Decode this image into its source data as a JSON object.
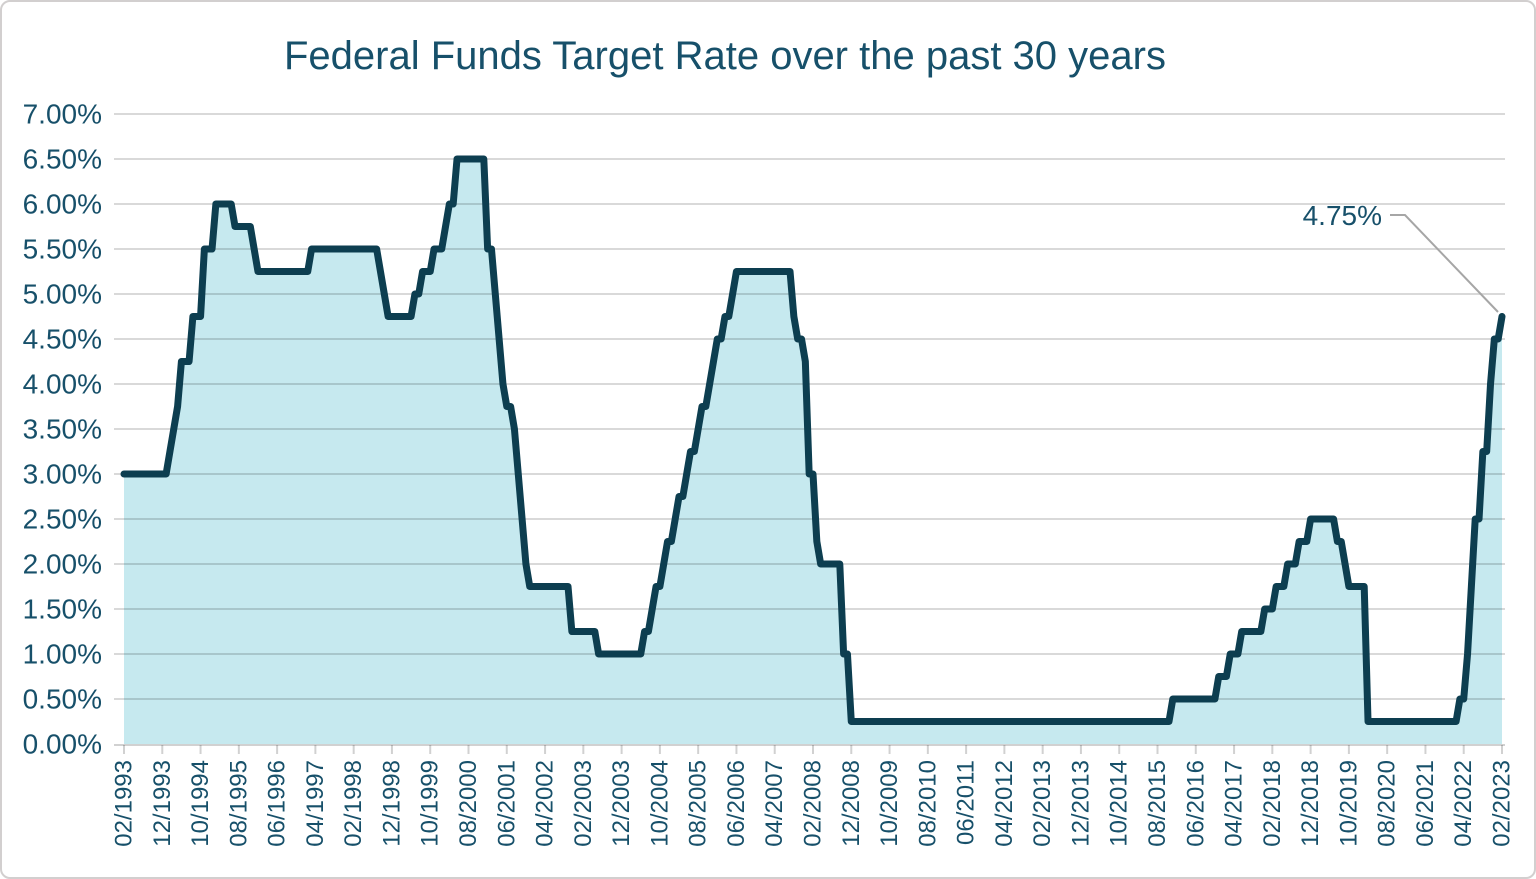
{
  "chart_data": {
    "type": "area",
    "title": "Federal Funds Target Rate over the past 30 years",
    "xlabel": "",
    "ylabel": "",
    "ylim": [
      0,
      7
    ],
    "grid": "horizontal",
    "legend": "none",
    "x_start": "02/1993",
    "x_end": "02/2023",
    "x_frequency": "monthly",
    "y_ticks": [
      "0.00%",
      "0.50%",
      "1.00%",
      "1.50%",
      "2.00%",
      "2.50%",
      "3.00%",
      "3.50%",
      "4.00%",
      "4.50%",
      "5.00%",
      "5.50%",
      "6.00%",
      "6.50%",
      "7.00%"
    ],
    "x_ticks": [
      "02/1993",
      "12/1993",
      "10/1994",
      "08/1995",
      "06/1996",
      "04/1997",
      "02/1998",
      "12/1998",
      "10/1999",
      "08/2000",
      "06/2001",
      "04/2002",
      "02/2003",
      "12/2003",
      "10/2004",
      "08/2005",
      "06/2006",
      "04/2007",
      "02/2008",
      "12/2008",
      "10/2009",
      "08/2010",
      "06/2011",
      "04/2012",
      "02/2013",
      "12/2013",
      "10/2014",
      "08/2015",
      "06/2016",
      "04/2017",
      "02/2018",
      "12/2018",
      "10/2019",
      "08/2020",
      "06/2021",
      "04/2022",
      "02/2023"
    ],
    "x_tick_step_months": 10,
    "series_name": "Federal Funds Target Rate (%)",
    "values_rle": [
      [
        3.0,
        12
      ],
      [
        3.25,
        1
      ],
      [
        3.5,
        1
      ],
      [
        3.75,
        1
      ],
      [
        4.25,
        3
      ],
      [
        4.75,
        3
      ],
      [
        5.5,
        3
      ],
      [
        6.0,
        5
      ],
      [
        5.75,
        5
      ],
      [
        5.5,
        1
      ],
      [
        5.25,
        14
      ],
      [
        5.5,
        18
      ],
      [
        5.25,
        1
      ],
      [
        5.0,
        1
      ],
      [
        4.75,
        7
      ],
      [
        5.0,
        2
      ],
      [
        5.25,
        3
      ],
      [
        5.5,
        3
      ],
      [
        5.75,
        1
      ],
      [
        6.0,
        2
      ],
      [
        6.5,
        8
      ],
      [
        5.5,
        2
      ],
      [
        5.0,
        1
      ],
      [
        4.5,
        1
      ],
      [
        4.0,
        1
      ],
      [
        3.75,
        2
      ],
      [
        3.5,
        1
      ],
      [
        3.0,
        1
      ],
      [
        2.5,
        1
      ],
      [
        2.0,
        1
      ],
      [
        1.75,
        11
      ],
      [
        1.25,
        7
      ],
      [
        1.0,
        12
      ],
      [
        1.25,
        2
      ],
      [
        1.5,
        1
      ],
      [
        1.75,
        2
      ],
      [
        2.0,
        1
      ],
      [
        2.25,
        2
      ],
      [
        2.5,
        1
      ],
      [
        2.75,
        2
      ],
      [
        3.0,
        1
      ],
      [
        3.25,
        2
      ],
      [
        3.5,
        1
      ],
      [
        3.75,
        2
      ],
      [
        4.0,
        1
      ],
      [
        4.25,
        1
      ],
      [
        4.5,
        2
      ],
      [
        4.75,
        2
      ],
      [
        5.0,
        1
      ],
      [
        5.25,
        15
      ],
      [
        4.75,
        1
      ],
      [
        4.5,
        2
      ],
      [
        4.25,
        1
      ],
      [
        3.0,
        2
      ],
      [
        2.25,
        1
      ],
      [
        2.0,
        6
      ],
      [
        1.0,
        2
      ],
      [
        0.25,
        84
      ],
      [
        0.5,
        12
      ],
      [
        0.75,
        3
      ],
      [
        1.0,
        3
      ],
      [
        1.25,
        6
      ],
      [
        1.5,
        3
      ],
      [
        1.75,
        3
      ],
      [
        2.0,
        3
      ],
      [
        2.25,
        3
      ],
      [
        2.5,
        7
      ],
      [
        2.25,
        2
      ],
      [
        2.0,
        1
      ],
      [
        1.75,
        5
      ],
      [
        0.25,
        24
      ],
      [
        0.5,
        2
      ],
      [
        1.0,
        1
      ],
      [
        1.75,
        1
      ],
      [
        2.5,
        2
      ],
      [
        3.25,
        2
      ],
      [
        4.0,
        1
      ],
      [
        4.5,
        2
      ],
      [
        4.75,
        1
      ]
    ],
    "annotation": {
      "label": "4.75%",
      "value": 4.75,
      "x": "02/2023"
    },
    "colors": {
      "line": "#0d3e50",
      "fill": "#c6e9ef",
      "text": "#17506a",
      "grid": "#d9d9d9",
      "leader": "#a6a6a6",
      "frame_border": "#d2cfcf"
    }
  }
}
